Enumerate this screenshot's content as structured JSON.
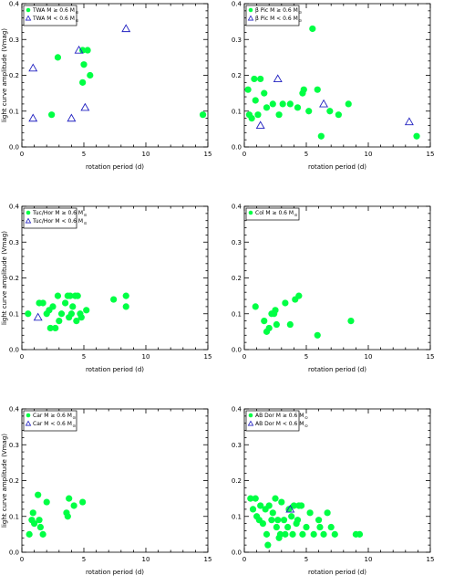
{
  "colors": {
    "solar": "#00ff44",
    "low_mass": "#2020c0",
    "axis": "#000000"
  },
  "chart_data": [
    {
      "type": "scatter",
      "xlabel": "rotation period (d)",
      "ylabel": "light curve amplitude (Vmag)",
      "xlim": [
        0,
        15
      ],
      "ylim": [
        0,
        0.4
      ],
      "xticks": [
        "0",
        "5",
        "10",
        "15"
      ],
      "yticks": [
        "0.0",
        "0.1",
        "0.2",
        "0.3",
        "0.4"
      ],
      "legend_position": "top-left",
      "series": [
        {
          "name": "TWA  M ≥ 0.6 M",
          "subscript": "⊙",
          "marker": "circle",
          "color": "#00ff44",
          "points": [
            [
              2.4,
              0.09
            ],
            [
              2.9,
              0.25
            ],
            [
              4.9,
              0.27
            ],
            [
              5.0,
              0.23
            ],
            [
              5.3,
              0.27
            ],
            [
              5.5,
              0.2
            ],
            [
              4.9,
              0.18
            ],
            [
              14.6,
              0.09
            ]
          ]
        },
        {
          "name": "TWA  M < 0.6 M",
          "subscript": "⊙",
          "marker": "triangle",
          "color": "#2020c0",
          "points": [
            [
              0.9,
              0.22
            ],
            [
              0.9,
              0.08
            ],
            [
              4.0,
              0.08
            ],
            [
              4.6,
              0.27
            ],
            [
              5.1,
              0.11
            ],
            [
              8.4,
              0.33
            ]
          ]
        }
      ]
    },
    {
      "type": "scatter",
      "xlabel": "rotation period (d)",
      "ylabel": "",
      "xlim": [
        0,
        15
      ],
      "ylim": [
        0,
        0.4
      ],
      "xticks": [
        "0",
        "5",
        "10",
        "15"
      ],
      "yticks": [
        "0.0",
        "0.1",
        "0.2",
        "0.3",
        "0.4"
      ],
      "legend_position": "top-left",
      "series": [
        {
          "name": "β Pic  M ≥ 0.6 M",
          "subscript": "⊙",
          "marker": "circle",
          "color": "#00ff44",
          "points": [
            [
              0.3,
              0.16
            ],
            [
              0.4,
              0.09
            ],
            [
              0.6,
              0.08
            ],
            [
              0.8,
              0.19
            ],
            [
              0.9,
              0.13
            ],
            [
              1.1,
              0.09
            ],
            [
              1.3,
              0.19
            ],
            [
              1.6,
              0.15
            ],
            [
              1.8,
              0.11
            ],
            [
              2.3,
              0.12
            ],
            [
              2.8,
              0.09
            ],
            [
              3.1,
              0.12
            ],
            [
              3.7,
              0.12
            ],
            [
              4.3,
              0.11
            ],
            [
              4.7,
              0.15
            ],
            [
              4.8,
              0.16
            ],
            [
              5.2,
              0.1
            ],
            [
              5.5,
              0.33
            ],
            [
              5.9,
              0.16
            ],
            [
              6.2,
              0.03
            ],
            [
              6.9,
              0.1
            ],
            [
              7.6,
              0.09
            ],
            [
              8.4,
              0.12
            ],
            [
              13.9,
              0.03
            ]
          ]
        },
        {
          "name": "β Pic  M < 0.6 M",
          "subscript": "⊙",
          "marker": "triangle",
          "color": "#2020c0",
          "points": [
            [
              1.3,
              0.06
            ],
            [
              2.7,
              0.19
            ],
            [
              6.4,
              0.12
            ],
            [
              13.3,
              0.07
            ]
          ]
        }
      ]
    },
    {
      "type": "scatter",
      "xlabel": "rotation period (d)",
      "ylabel": "light curve amplitude (Vmag)",
      "xlim": [
        0,
        15
      ],
      "ylim": [
        0,
        0.4
      ],
      "xticks": [
        "0",
        "5",
        "10",
        "15"
      ],
      "yticks": [
        "0.0",
        "0.1",
        "0.2",
        "0.3",
        "0.4"
      ],
      "legend_position": "top-left",
      "series": [
        {
          "name": "Tuc/Hor  M ≥ 0.6 M",
          "subscript": "⊙",
          "marker": "circle",
          "color": "#00ff44",
          "points": [
            [
              0.5,
              0.1
            ],
            [
              1.4,
              0.13
            ],
            [
              1.7,
              0.13
            ],
            [
              2.0,
              0.1
            ],
            [
              2.2,
              0.11
            ],
            [
              2.3,
              0.06
            ],
            [
              2.5,
              0.12
            ],
            [
              2.7,
              0.06
            ],
            [
              2.9,
              0.15
            ],
            [
              3.0,
              0.08
            ],
            [
              3.2,
              0.1
            ],
            [
              3.5,
              0.13
            ],
            [
              3.7,
              0.15
            ],
            [
              3.8,
              0.09
            ],
            [
              3.9,
              0.15
            ],
            [
              4.0,
              0.1
            ],
            [
              4.1,
              0.12
            ],
            [
              4.3,
              0.15
            ],
            [
              4.4,
              0.08
            ],
            [
              4.5,
              0.15
            ],
            [
              4.7,
              0.1
            ],
            [
              4.8,
              0.09
            ],
            [
              5.2,
              0.11
            ],
            [
              7.4,
              0.14
            ],
            [
              8.4,
              0.15
            ],
            [
              8.4,
              0.12
            ]
          ]
        },
        {
          "name": "Tuc/Hor  M < 0.6 M",
          "subscript": "⊙",
          "marker": "triangle",
          "color": "#2020c0",
          "points": [
            [
              1.3,
              0.09
            ]
          ]
        }
      ]
    },
    {
      "type": "scatter",
      "xlabel": "rotation period (d)",
      "ylabel": "",
      "xlim": [
        0,
        15
      ],
      "ylim": [
        0,
        0.4
      ],
      "xticks": [
        "0",
        "5",
        "10",
        "15"
      ],
      "yticks": [
        "0.0",
        "0.1",
        "0.2",
        "0.3",
        "0.4"
      ],
      "legend_position": "top-left",
      "series": [
        {
          "name": "Col  M ≥ 0.6 M",
          "subscript": "⊙",
          "marker": "circle",
          "color": "#00ff44",
          "points": [
            [
              0.9,
              0.12
            ],
            [
              1.6,
              0.08
            ],
            [
              1.8,
              0.05
            ],
            [
              2.0,
              0.06
            ],
            [
              2.2,
              0.1
            ],
            [
              2.5,
              0.11
            ],
            [
              2.6,
              0.07
            ],
            [
              3.3,
              0.13
            ],
            [
              3.7,
              0.07
            ],
            [
              4.1,
              0.14
            ],
            [
              4.4,
              0.15
            ],
            [
              5.9,
              0.04
            ],
            [
              8.6,
              0.08
            ],
            [
              2.4,
              0.1
            ]
          ]
        }
      ]
    },
    {
      "type": "scatter",
      "xlabel": "rotation period (d)",
      "ylabel": "light curve amplitude (Vmag)",
      "xlim": [
        0,
        15
      ],
      "ylim": [
        0,
        0.4
      ],
      "xticks": [
        "0",
        "5",
        "10",
        "15"
      ],
      "yticks": [
        "0.0",
        "0.1",
        "0.2",
        "0.3",
        "0.4"
      ],
      "legend_position": "top-left",
      "series": [
        {
          "name": "Car  M ≥ 0.6 M",
          "subscript": "⊙",
          "marker": "circle",
          "color": "#00ff44",
          "points": [
            [
              0.6,
              0.05
            ],
            [
              0.8,
              0.09
            ],
            [
              0.9,
              0.11
            ],
            [
              1.0,
              0.08
            ],
            [
              1.3,
              0.16
            ],
            [
              1.4,
              0.09
            ],
            [
              1.5,
              0.07
            ],
            [
              1.7,
              0.05
            ],
            [
              2.0,
              0.14
            ],
            [
              3.6,
              0.11
            ],
            [
              3.7,
              0.1
            ],
            [
              3.8,
              0.15
            ],
            [
              4.2,
              0.13
            ],
            [
              4.9,
              0.14
            ]
          ]
        },
        {
          "name": "Car  M < 0.6 M",
          "subscript": "⊙",
          "marker": "triangle",
          "color": "#2020c0",
          "points": []
        }
      ]
    },
    {
      "type": "scatter",
      "xlabel": "rotation period (d)",
      "ylabel": "",
      "xlim": [
        0,
        15
      ],
      "ylim": [
        0,
        0.4
      ],
      "xticks": [
        "0",
        "5",
        "10",
        "15"
      ],
      "yticks": [
        "0.0",
        "0.1",
        "0.2",
        "0.3",
        "0.4"
      ],
      "legend_position": "top-left",
      "series": [
        {
          "name": "AB Dor  M ≥ 0.6 M",
          "subscript": "⊙",
          "marker": "circle",
          "color": "#00ff44",
          "points": [
            [
              0.5,
              0.15
            ],
            [
              0.7,
              0.12
            ],
            [
              0.9,
              0.15
            ],
            [
              1.0,
              0.1
            ],
            [
              1.2,
              0.09
            ],
            [
              1.3,
              0.13
            ],
            [
              1.5,
              0.08
            ],
            [
              1.7,
              0.12
            ],
            [
              1.8,
              0.05
            ],
            [
              1.9,
              0.02
            ],
            [
              2.0,
              0.13
            ],
            [
              2.2,
              0.09
            ],
            [
              2.3,
              0.11
            ],
            [
              2.5,
              0.15
            ],
            [
              2.6,
              0.07
            ],
            [
              2.7,
              0.09
            ],
            [
              2.8,
              0.04
            ],
            [
              2.9,
              0.05
            ],
            [
              3.0,
              0.14
            ],
            [
              3.2,
              0.09
            ],
            [
              3.3,
              0.05
            ],
            [
              3.5,
              0.07
            ],
            [
              3.6,
              0.12
            ],
            [
              3.8,
              0.1
            ],
            [
              3.9,
              0.05
            ],
            [
              4.0,
              0.13
            ],
            [
              4.2,
              0.08
            ],
            [
              4.3,
              0.09
            ],
            [
              4.4,
              0.13
            ],
            [
              4.6,
              0.13
            ],
            [
              4.7,
              0.05
            ],
            [
              5.0,
              0.07
            ],
            [
              5.3,
              0.11
            ],
            [
              5.6,
              0.05
            ],
            [
              6.0,
              0.09
            ],
            [
              6.1,
              0.07
            ],
            [
              6.4,
              0.05
            ],
            [
              6.7,
              0.11
            ],
            [
              7.0,
              0.07
            ],
            [
              7.3,
              0.05
            ],
            [
              9.0,
              0.05
            ],
            [
              9.3,
              0.05
            ]
          ]
        },
        {
          "name": "AB Dor  M < 0.6 M",
          "subscript": "⊙",
          "marker": "triangle",
          "color": "#2020c0",
          "points": [
            [
              3.7,
              0.12
            ]
          ]
        }
      ]
    }
  ]
}
